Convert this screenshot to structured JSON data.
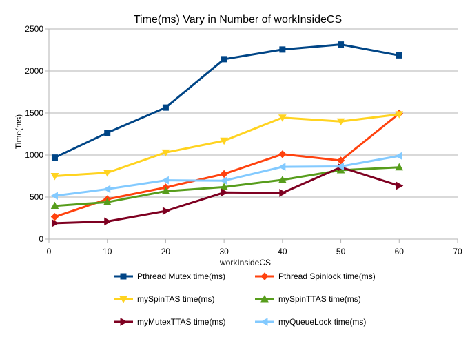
{
  "chart_data": {
    "type": "line",
    "title": "Time(ms) Vary in Number of workInsideCS",
    "xlabel": "workInsideCS",
    "ylabel": "Time(ms)",
    "x": [
      1,
      10,
      20,
      30,
      40,
      50,
      60
    ],
    "xlim": [
      0,
      70
    ],
    "ylim": [
      0,
      2500
    ],
    "x_ticks": [
      0,
      10,
      20,
      30,
      40,
      50,
      60,
      70
    ],
    "y_ticks": [
      0,
      500,
      1000,
      1500,
      2000,
      2500
    ],
    "grid": "horizontal",
    "legend_position": "bottom",
    "series": [
      {
        "name": "Pthread Mutex time(ms)",
        "color": "#004586",
        "marker": "square",
        "values": [
          970,
          1265,
          1565,
          2140,
          2255,
          2315,
          2185
        ]
      },
      {
        "name": "Pthread Spinlock time(ms)",
        "color": "#ff420e",
        "marker": "diamond",
        "values": [
          265,
          475,
          615,
          775,
          1010,
          935,
          1495
        ]
      },
      {
        "name": "mySpinTAS time(ms)",
        "color": "#ffd320",
        "marker": "triangle-down",
        "values": [
          750,
          790,
          1030,
          1170,
          1445,
          1400,
          1485
        ]
      },
      {
        "name": "mySpinTTAS time(ms)",
        "color": "#579d1c",
        "marker": "triangle-up",
        "values": [
          395,
          440,
          570,
          620,
          705,
          820,
          855
        ]
      },
      {
        "name": "myMutexTTAS time(ms)",
        "color": "#7e0021",
        "marker": "triangle-right",
        "values": [
          190,
          210,
          335,
          555,
          550,
          855,
          635
        ]
      },
      {
        "name": "myQueueLock time(ms)",
        "color": "#83caff",
        "marker": "triangle-left",
        "values": [
          515,
          595,
          700,
          695,
          860,
          865,
          990
        ]
      }
    ]
  }
}
